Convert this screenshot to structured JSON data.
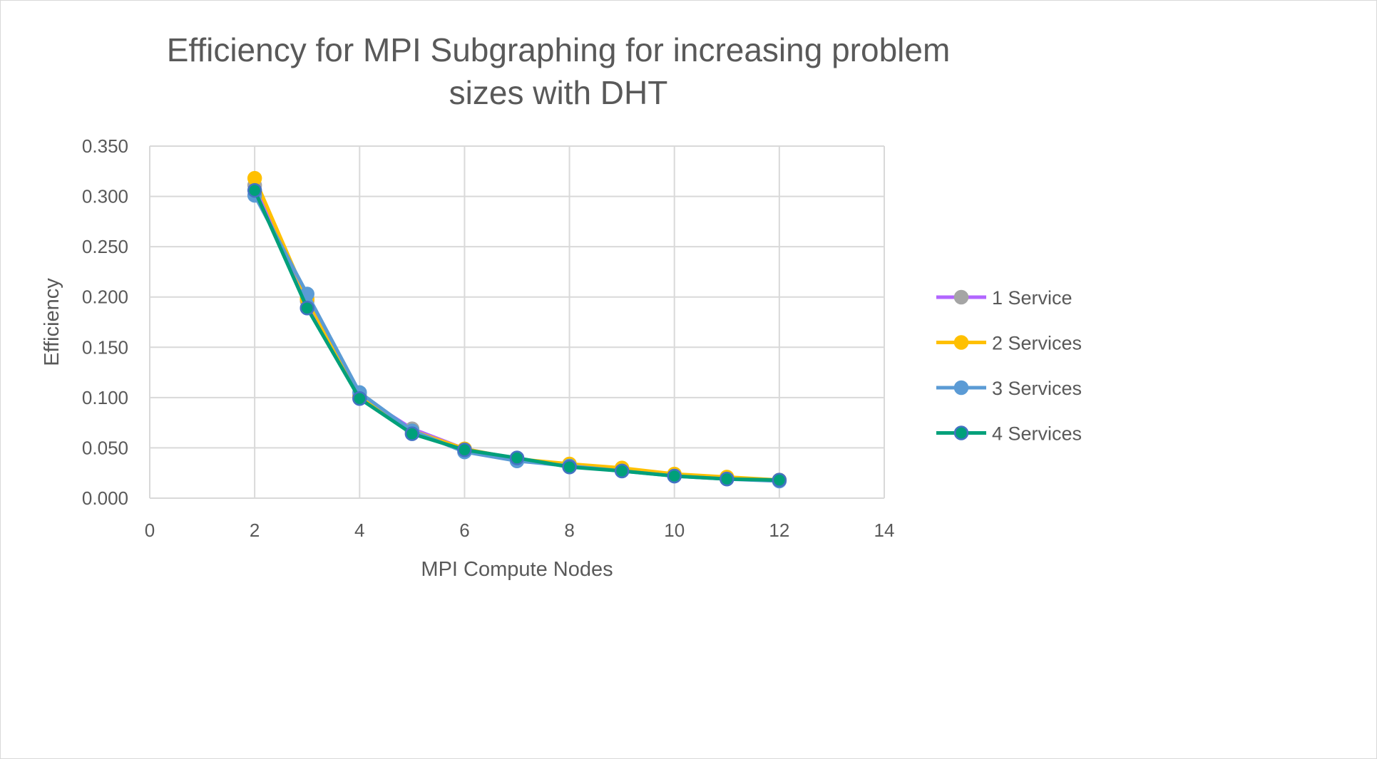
{
  "chart_data": {
    "type": "line",
    "title": "Efficiency for MPI Subgraphing for increasing problem sizes with DHT",
    "title_lines": [
      "Efficiency for MPI Subgraphing for increasing problem",
      "sizes with DHT"
    ],
    "xlabel": "MPI Compute Nodes",
    "ylabel": "Efficiency",
    "xlim": [
      0,
      14
    ],
    "ylim": [
      0,
      0.35
    ],
    "xticks": [
      "0",
      "2",
      "4",
      "6",
      "8",
      "10",
      "12",
      "14"
    ],
    "yticks": [
      "0.000",
      "0.050",
      "0.100",
      "0.150",
      "0.200",
      "0.250",
      "0.300",
      "0.350"
    ],
    "grid": true,
    "legend_position": "right",
    "x": [
      2,
      3,
      4,
      5,
      6,
      7,
      8,
      9,
      10,
      11,
      12
    ],
    "series": [
      {
        "name": "1 Service",
        "color": "#b266ff",
        "marker_color": "#a5a5a5",
        "values": [
          0.311,
          0.196,
          0.102,
          0.069,
          0.049,
          0.039,
          0.033,
          0.028,
          0.023,
          0.02,
          0.018
        ]
      },
      {
        "name": "2 Services",
        "color": "#ffc000",
        "marker_color": "#ffc000",
        "values": [
          0.318,
          0.198,
          0.101,
          0.067,
          0.049,
          0.039,
          0.034,
          0.03,
          0.024,
          0.021,
          0.018
        ]
      },
      {
        "name": "3 Services",
        "color": "#5b9bd5",
        "marker_color": "#5b9bd5",
        "values": [
          0.301,
          0.203,
          0.105,
          0.067,
          0.046,
          0.037,
          0.032,
          0.027,
          0.022,
          0.019,
          0.017
        ]
      },
      {
        "name": "4 Services",
        "color": "#00a07a",
        "marker_color": "#00a07a",
        "marker_edge": "#4472c4",
        "values": [
          0.306,
          0.189,
          0.099,
          0.064,
          0.048,
          0.04,
          0.031,
          0.027,
          0.022,
          0.019,
          0.018
        ]
      }
    ]
  }
}
